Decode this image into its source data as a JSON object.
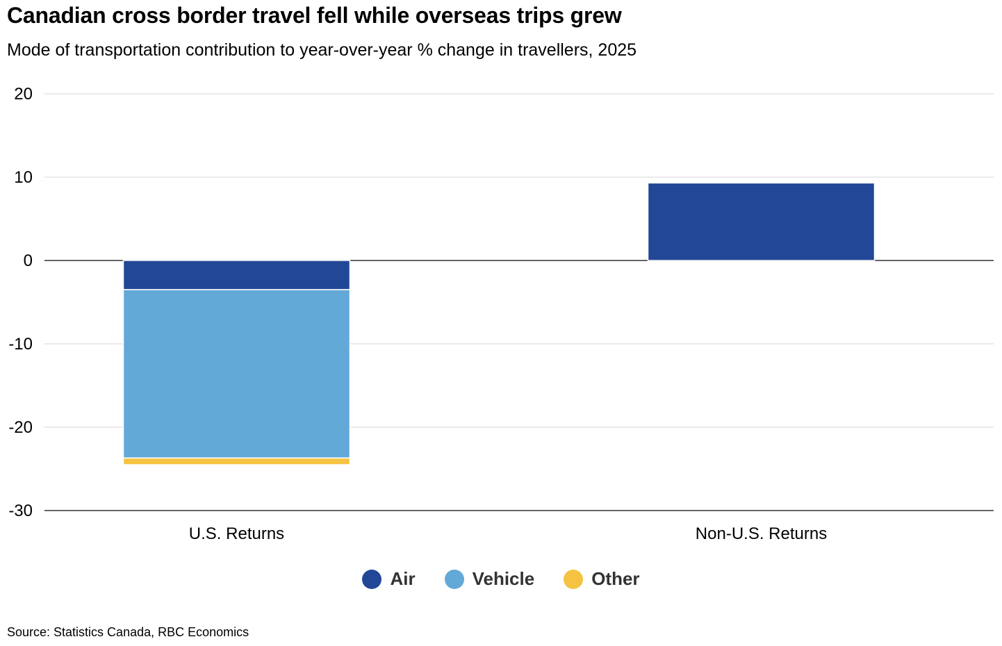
{
  "header": {
    "title": "Canadian cross border travel fell while overseas trips grew",
    "subtitle": "Mode of transportation contribution to year-over-year % change in travellers, 2025"
  },
  "footer": {
    "source": "Source: Statistics Canada, RBC Economics"
  },
  "chart_data": {
    "type": "bar",
    "stacked": true,
    "title": "Canadian cross border travel fell while overseas trips grew",
    "subtitle": "Mode of transportation contribution to year-over-year % change in travellers, 2025",
    "xlabel": "",
    "ylabel": "",
    "categories": [
      "U.S. Returns",
      "Non-U.S. Returns"
    ],
    "series": [
      {
        "name": "Air",
        "color": "#214796",
        "values": [
          -3.5,
          9.3
        ]
      },
      {
        "name": "Vehicle",
        "color": "#63a9d7",
        "values": [
          -20.2,
          0
        ]
      },
      {
        "name": "Other",
        "color": "#f5c242",
        "values": [
          -0.8,
          0
        ]
      }
    ],
    "ylim": [
      -30,
      20
    ],
    "yticks": [
      20,
      10,
      0,
      -10,
      -20,
      -30
    ],
    "grid": true,
    "legend_position": "bottom-center"
  }
}
